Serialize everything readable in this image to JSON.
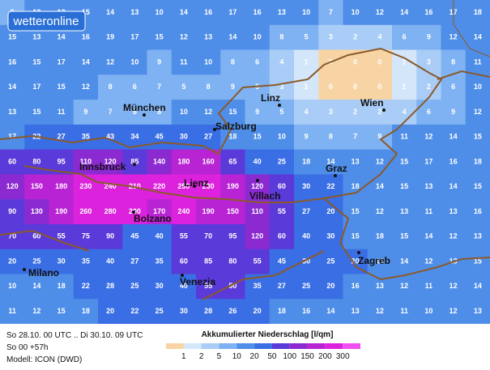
{
  "logo": "wetteronline",
  "map": {
    "levels": [
      1,
      2,
      5,
      10,
      20,
      50,
      100,
      150,
      200,
      300
    ],
    "colors": [
      "#f8d4a4",
      "#d3e6fa",
      "#a9cdf6",
      "#7fb2f2",
      "#4f8ee8",
      "#3a6ee4",
      "#5a3ad8",
      "#8a2ad0",
      "#b824d4",
      "#dc22dc",
      "#f050f0"
    ],
    "grid": [
      [
        9,
        12,
        13,
        15,
        14,
        13,
        10,
        14,
        16,
        17,
        16,
        13,
        10,
        7,
        10,
        12,
        14,
        16,
        17,
        18
      ],
      [
        15,
        13,
        14,
        16,
        19,
        17,
        15,
        12,
        13,
        14,
        10,
        8,
        5,
        3,
        2,
        4,
        6,
        9,
        12,
        14
      ],
      [
        16,
        15,
        17,
        14,
        12,
        10,
        9,
        11,
        10,
        8,
        6,
        4,
        1,
        0,
        0,
        0,
        1,
        3,
        8,
        11
      ],
      [
        14,
        17,
        15,
        12,
        8,
        6,
        7,
        5,
        8,
        9,
        5,
        3,
        1,
        0,
        0,
        0,
        1,
        2,
        6,
        10
      ],
      [
        13,
        15,
        11,
        9,
        7,
        6,
        8,
        10,
        12,
        15,
        9,
        5,
        4,
        3,
        2,
        2,
        4,
        6,
        9,
        12
      ],
      [
        17,
        22,
        27,
        35,
        43,
        34,
        45,
        30,
        27,
        18,
        15,
        10,
        9,
        8,
        7,
        9,
        11,
        12,
        14,
        15
      ],
      [
        60,
        80,
        95,
        110,
        120,
        85,
        140,
        180,
        160,
        65,
        40,
        25,
        18,
        14,
        13,
        12,
        15,
        17,
        16,
        18
      ],
      [
        120,
        150,
        180,
        230,
        240,
        210,
        220,
        250,
        230,
        190,
        120,
        60,
        30,
        22,
        18,
        14,
        15,
        13,
        14,
        15
      ],
      [
        90,
        130,
        190,
        260,
        280,
        200,
        170,
        240,
        190,
        150,
        110,
        55,
        27,
        20,
        15,
        12,
        13,
        11,
        13,
        16
      ],
      [
        70,
        60,
        55,
        75,
        90,
        45,
        40,
        55,
        70,
        95,
        120,
        60,
        40,
        30,
        15,
        18,
        15,
        14,
        12,
        13
      ],
      [
        20,
        25,
        30,
        35,
        40,
        27,
        35,
        60,
        85,
        80,
        55,
        45,
        30,
        25,
        20,
        16,
        14,
        12,
        13,
        15
      ],
      [
        10,
        14,
        18,
        22,
        28,
        25,
        30,
        40,
        55,
        50,
        35,
        27,
        25,
        20,
        16,
        13,
        12,
        11,
        12,
        14
      ],
      [
        11,
        12,
        15,
        18,
        20,
        22,
        25,
        30,
        28,
        26,
        20,
        18,
        16,
        14,
        13,
        12,
        11,
        10,
        12,
        13
      ]
    ],
    "cities": [
      "München",
      "Linz",
      "Salzburg",
      "Wien",
      "Graz",
      "Innsbruck",
      "Lienz",
      "Villach",
      "Bolzano",
      "Zagreb",
      "Milano",
      "Venezia"
    ]
  },
  "footer": {
    "period": "So 28.10. 00 UTC .. Di 30.10. 09 UTC",
    "step": "So 00 +57h",
    "model": "Modell: ICON (DWD)",
    "legend_title": "Akkumulierter Niederschlag [l/qm]"
  }
}
